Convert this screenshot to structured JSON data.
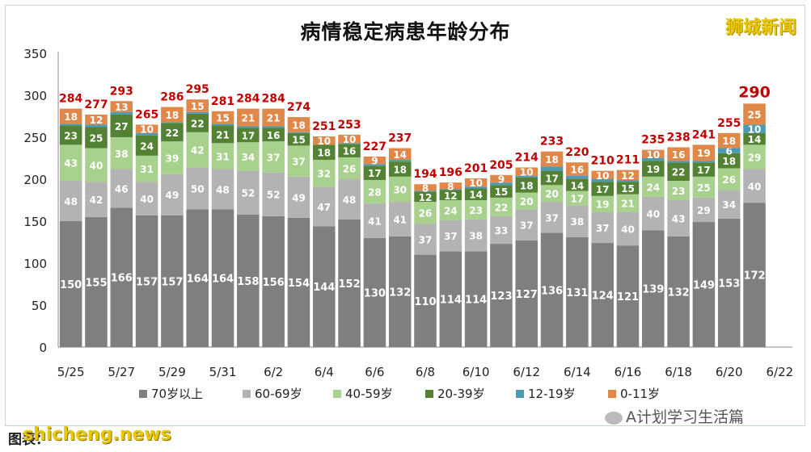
{
  "watermark_brand": "狮城新闻",
  "source_note": "图表：",
  "site_watermark": "shicheng.news",
  "wechat_tag": "A计划学习生活篇",
  "chart_data": {
    "type": "bar",
    "stacked": true,
    "title": "病情稳定病患年龄分布",
    "categories": [
      "5/25",
      "5/26",
      "5/27",
      "5/28",
      "5/29",
      "5/30",
      "5/31",
      "6/1",
      "6/2",
      "6/3",
      "6/4",
      "6/5",
      "6/6",
      "6/7",
      "6/8",
      "6/9",
      "6/10",
      "6/11",
      "6/12",
      "6/13",
      "6/14",
      "6/15",
      "6/16",
      "6/17",
      "6/18",
      "6/19",
      "6/20",
      "6/21",
      "6/22"
    ],
    "x_tick_labels": [
      "5/25",
      "5/27",
      "5/29",
      "5/31",
      "6/2",
      "6/4",
      "6/6",
      "6/8",
      "6/10",
      "6/12",
      "6/14",
      "6/16",
      "6/18",
      "6/20",
      "6/22"
    ],
    "ylim": [
      0,
      350
    ],
    "yticks": [
      0,
      50,
      100,
      150,
      200,
      250,
      300,
      350
    ],
    "grid": false,
    "legend": "bottom",
    "totals": [
      284,
      277,
      293,
      265,
      286,
      295,
      281,
      284,
      284,
      274,
      251,
      253,
      227,
      237,
      194,
      196,
      201,
      205,
      214,
      233,
      220,
      210,
      211,
      235,
      238,
      241,
      255,
      290,
      null
    ],
    "series": [
      {
        "name": "70岁以上",
        "color": "#7f7f7f",
        "values": [
          150,
          155,
          166,
          157,
          157,
          164,
          164,
          158,
          156,
          154,
          144,
          152,
          130,
          132,
          110,
          114,
          114,
          123,
          127,
          136,
          131,
          124,
          121,
          139,
          132,
          149,
          153,
          172,
          null
        ]
      },
      {
        "name": "60-69岁",
        "color": "#b3b3b3",
        "values": [
          48,
          42,
          46,
          40,
          49,
          50,
          48,
          52,
          52,
          49,
          47,
          48,
          41,
          41,
          37,
          37,
          38,
          33,
          37,
          37,
          38,
          37,
          40,
          40,
          43,
          29,
          34,
          40,
          null
        ]
      },
      {
        "name": "40-59岁",
        "color": "#a9d18e",
        "values": [
          43,
          40,
          38,
          31,
          39,
          42,
          31,
          34,
          37,
          37,
          32,
          26,
          28,
          30,
          26,
          24,
          23,
          22,
          20,
          20,
          17,
          19,
          21,
          24,
          23,
          25,
          26,
          29,
          null
        ]
      },
      {
        "name": "20-39岁",
        "color": "#548235",
        "values": [
          23,
          25,
          27,
          24,
          22,
          22,
          21,
          17,
          16,
          15,
          18,
          16,
          17,
          18,
          12,
          12,
          14,
          15,
          18,
          17,
          14,
          17,
          15,
          19,
          22,
          17,
          18,
          14,
          null
        ]
      },
      {
        "name": "12-19岁",
        "color": "#4a9bb3",
        "values": [
          2,
          3,
          3,
          3,
          1,
          2,
          2,
          2,
          2,
          1,
          0,
          1,
          2,
          2,
          1,
          1,
          2,
          3,
          2,
          5,
          4,
          3,
          2,
          3,
          2,
          2,
          6,
          10,
          null
        ]
      },
      {
        "name": "0-11岁",
        "color": "#e0874a",
        "values": [
          18,
          12,
          13,
          10,
          18,
          15,
          15,
          21,
          21,
          18,
          10,
          10,
          9,
          14,
          8,
          8,
          10,
          9,
          10,
          18,
          16,
          10,
          12,
          10,
          16,
          19,
          18,
          25,
          null
        ]
      }
    ]
  }
}
